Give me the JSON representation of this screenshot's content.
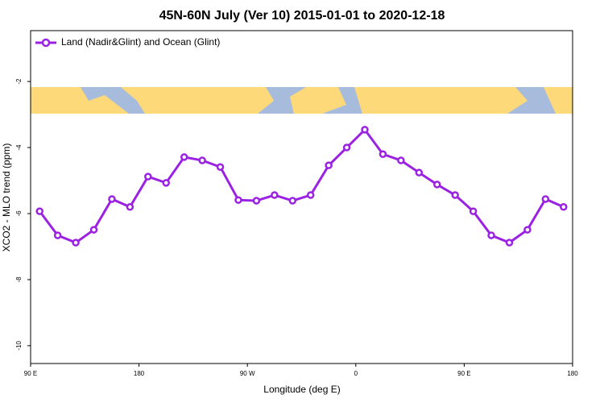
{
  "chart_data": {
    "type": "line",
    "title": "45N-60N July (Ver 10)   2015-01-01 to 2020-12-18",
    "x_label": "Longitude (deg E)",
    "y_label": "XCO2 - MLO trend (ppm)",
    "x": [
      97.5,
      112.5,
      127.5,
      142.5,
      157.5,
      172.5,
      187.5,
      202.5,
      217.5,
      232.5,
      247.5,
      262.5,
      277.5,
      292.5,
      307.5,
      322.5,
      337.5,
      352.5,
      367.5,
      382.5,
      397.5,
      412.5,
      427.5,
      442.5,
      457.5,
      472.5,
      487.5,
      502.5,
      517.5,
      532.5
    ],
    "series": [
      {
        "name": "Land (Nadir&Glint) and Ocean (Glint)",
        "color": "#9b22e3",
        "values": [
          -5.93,
          -6.66,
          -6.88,
          -6.49,
          -5.56,
          -5.8,
          -4.88,
          -5.07,
          -4.29,
          -4.39,
          -4.59,
          -5.59,
          -5.61,
          -5.44,
          -5.61,
          -5.44,
          -4.54,
          -4.0,
          -3.46,
          -4.2,
          -4.39,
          -4.76,
          -5.12,
          -5.44,
          -5.93,
          -6.66,
          -6.88,
          -6.49,
          -5.56,
          -5.8
        ]
      }
    ],
    "xlim": [
      90,
      540
    ],
    "xticks": [
      {
        "value": 90,
        "label": "90 E"
      },
      {
        "value": 180,
        "label": "180"
      },
      {
        "value": 270,
        "label": "90 W"
      },
      {
        "value": 360,
        "label": "0"
      },
      {
        "value": 450,
        "label": "90 E"
      },
      {
        "value": 540,
        "label": "180"
      }
    ],
    "ylim": [
      -10.54,
      -0.46
    ],
    "yticks": [
      -10,
      -8,
      -6,
      -4,
      -2
    ],
    "legend": "top-left"
  }
}
